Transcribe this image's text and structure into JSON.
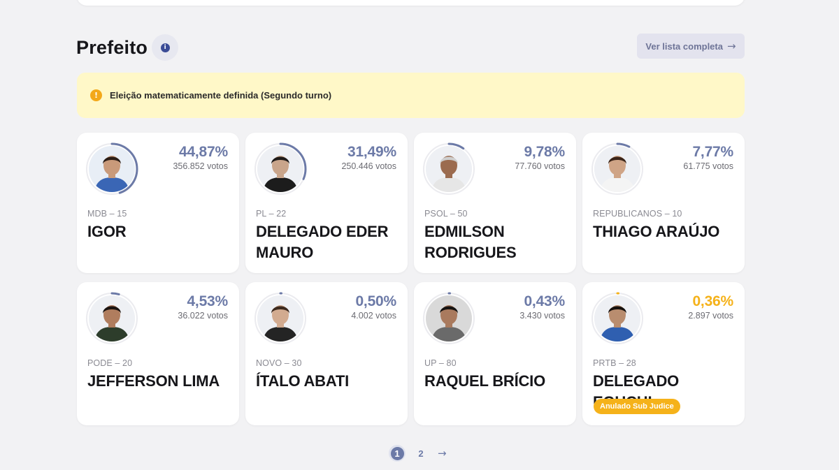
{
  "section": {
    "title": "Prefeito",
    "full_list_label": "Ver lista completa",
    "alert_text": "Eleição matematicamente definida (Segundo turno)"
  },
  "candidates": [
    {
      "percent": "44,87%",
      "votes": "356.852 votos",
      "party": "MDB – 15",
      "name": "IGOR",
      "share": 0.4487,
      "skin": "#c99a7a",
      "hair": "#2b1d16",
      "shirt": "#3a66b5",
      "bg": "#e8eef6"
    },
    {
      "percent": "31,49%",
      "votes": "250.446 votos",
      "party": "PL – 22",
      "name": "DELEGADO EDER MAURO",
      "share": 0.3149,
      "skin": "#c9a58b",
      "hair": "#1f1b19",
      "shirt": "#1c1c1c",
      "bg": "#eef0f4"
    },
    {
      "percent": "9,78%",
      "votes": "77.760 votos",
      "party": "PSOL – 50",
      "name": "EDMILSON RODRIGUES",
      "share": 0.0978,
      "skin": "#9b6b4f",
      "hair": "#cfcfcf",
      "shirt": "#e6e6e6",
      "bg": "#eef0f4"
    },
    {
      "percent": "7,77%",
      "votes": "61.775 votos",
      "party": "REPUBLICANOS – 10",
      "name": "THIAGO ARAÚJO",
      "share": 0.0777,
      "skin": "#cfa486",
      "hair": "#3a2418",
      "shirt": "#f4f4f4",
      "bg": "#eef0f4"
    },
    {
      "percent": "4,53%",
      "votes": "36.022 votos",
      "party": "PODE – 20",
      "name": "JEFFERSON LIMA",
      "share": 0.0453,
      "skin": "#b07d5e",
      "hair": "#1a1310",
      "shirt": "#2d3d2b",
      "bg": "#eef0f4"
    },
    {
      "percent": "0,50%",
      "votes": "4.002 votos",
      "party": "NOVO – 30",
      "name": "ÍTALO ABATI",
      "share": 0.005,
      "skin": "#d2ab90",
      "hair": "#3d2a1e",
      "shirt": "#242424",
      "bg": "#eef0f4"
    },
    {
      "percent": "0,43%",
      "votes": "3.430 votos",
      "party": "UP – 80",
      "name": "RAQUEL BRÍCIO",
      "share": 0.0043,
      "skin": "#a97a5e",
      "hair": "#151211",
      "shirt": "#6a6a6a",
      "bg": "#d9d9d9"
    },
    {
      "percent": "0,36%",
      "votes": "2.897 votos",
      "party": "PRTB – 28",
      "name": "DELEGADO EGUCHI",
      "share": 0.0036,
      "skin": "#b98d6f",
      "hair": "#15100d",
      "shirt": "#2f5fb0",
      "bg": "#eef0f4",
      "badge": "Anulado Sub Judice"
    }
  ],
  "pagination": {
    "pages": [
      "1",
      "2"
    ],
    "current": "1",
    "next_icon": "→"
  },
  "colors": {
    "ring": "#6c7aa7",
    "ring_gold": "#f5b21a",
    "accent": "#6c7aa7"
  }
}
